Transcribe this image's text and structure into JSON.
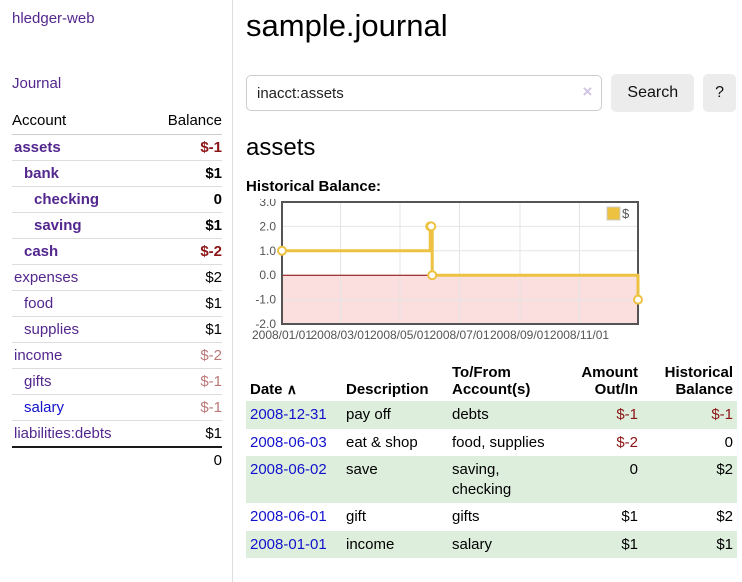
{
  "colors": {
    "accent_purple": "#53278e",
    "link_blue": "#1212cc",
    "negative_red": "#8b1414",
    "negative_muted": "#bb7878",
    "row_stripe_green": "#ddeedd",
    "chart_line_gold": "#edc240",
    "chart_negative_fill": "#fbdfdf",
    "chart_zero_line": "#8b0000",
    "chart_frame": "#545454"
  },
  "sidebar": {
    "brand": "hledger-web",
    "journal_link": "Journal",
    "table": {
      "account_header": "Account",
      "balance_header": "Balance",
      "rows": [
        {
          "name": "assets",
          "depth": 0,
          "bold": true,
          "link_style": "purple",
          "balance": "$-1",
          "balance_style": "neg"
        },
        {
          "name": "bank",
          "depth": 1,
          "bold": true,
          "link_style": "purple",
          "balance": "$1",
          "balance_style": "pos"
        },
        {
          "name": "checking",
          "depth": 2,
          "bold": true,
          "link_style": "purple",
          "balance": "0",
          "balance_style": "pos"
        },
        {
          "name": "saving",
          "depth": 2,
          "bold": true,
          "link_style": "purple",
          "balance": "$1",
          "balance_style": "pos"
        },
        {
          "name": "cash",
          "depth": 1,
          "bold": true,
          "link_style": "purple",
          "balance": "$-2",
          "balance_style": "neg"
        },
        {
          "name": "expenses",
          "depth": 0,
          "bold": false,
          "link_style": "purple",
          "balance": "$2",
          "balance_style": "pos"
        },
        {
          "name": "food",
          "depth": 1,
          "bold": false,
          "link_style": "purple",
          "balance": "$1",
          "balance_style": "pos"
        },
        {
          "name": "supplies",
          "depth": 1,
          "bold": false,
          "link_style": "purple",
          "balance": "$1",
          "balance_style": "pos"
        },
        {
          "name": "income",
          "depth": 0,
          "bold": false,
          "link_style": "purple",
          "balance": "$-2",
          "balance_style": "neg-muted"
        },
        {
          "name": "gifts",
          "depth": 1,
          "bold": false,
          "link_style": "purple",
          "balance": "$-1",
          "balance_style": "neg-muted"
        },
        {
          "name": "salary",
          "depth": 1,
          "bold": false,
          "link_style": "blue",
          "balance": "$-1",
          "balance_style": "neg-muted"
        },
        {
          "name": "liabilities:debts",
          "depth": 0,
          "bold": false,
          "link_style": "purple",
          "balance": "$1",
          "balance_style": "pos"
        }
      ],
      "total": "0"
    }
  },
  "main": {
    "title": "sample.journal",
    "search": {
      "value": "inacct:assets",
      "clear_icon": "×",
      "button": "Search",
      "help_button": "?"
    },
    "account_heading": "assets",
    "chart_label": "Historical Balance:"
  },
  "chart_data": {
    "type": "line",
    "step": true,
    "title": "Historical Balance",
    "x_type": "date",
    "x_range": [
      "2008-01-01",
      "2008-12-31"
    ],
    "ylim": [
      -2.0,
      3.0
    ],
    "yticks": [
      3.0,
      2.0,
      1.0,
      0.0,
      -1.0,
      -2.0
    ],
    "xtick_labels": [
      "2008/01/01",
      "2008/03/01",
      "2008/05/01",
      "2008/07/01",
      "2008/09/01",
      "2008/11/01"
    ],
    "grid": true,
    "legend": {
      "position": "top-right",
      "label": "$"
    },
    "negative_region_fill": true,
    "series": [
      {
        "name": "$",
        "color": "#edc240",
        "points": [
          [
            "2008-01-01",
            1
          ],
          [
            "2008-06-01",
            2
          ],
          [
            "2008-06-02",
            2
          ],
          [
            "2008-06-03",
            0
          ],
          [
            "2008-12-31",
            -1
          ]
        ]
      }
    ]
  },
  "register": {
    "headers": {
      "date": "Date",
      "sort_icon": "∧",
      "description": "Description",
      "accounts": "To/From Account(s)",
      "amount": "Amount Out/In",
      "balance": "Historical Balance"
    },
    "rows": [
      {
        "date": "2008-12-31",
        "description": "pay off",
        "accounts": "debts",
        "amount": "$-1",
        "amount_style": "neg",
        "balance": "$-1",
        "balance_style": "neg"
      },
      {
        "date": "2008-06-03",
        "description": "eat & shop",
        "accounts": "food, supplies",
        "amount": "$-2",
        "amount_style": "neg",
        "balance": "0",
        "balance_style": "pos"
      },
      {
        "date": "2008-06-02",
        "description": "save",
        "accounts": "saving, checking",
        "amount": "0",
        "amount_style": "pos",
        "balance": "$2",
        "balance_style": "pos"
      },
      {
        "date": "2008-06-01",
        "description": "gift",
        "accounts": "gifts",
        "amount": "$1",
        "amount_style": "pos",
        "balance": "$2",
        "balance_style": "pos"
      },
      {
        "date": "2008-01-01",
        "description": "income",
        "accounts": "salary",
        "amount": "$1",
        "amount_style": "pos",
        "balance": "$1",
        "balance_style": "pos"
      }
    ]
  }
}
